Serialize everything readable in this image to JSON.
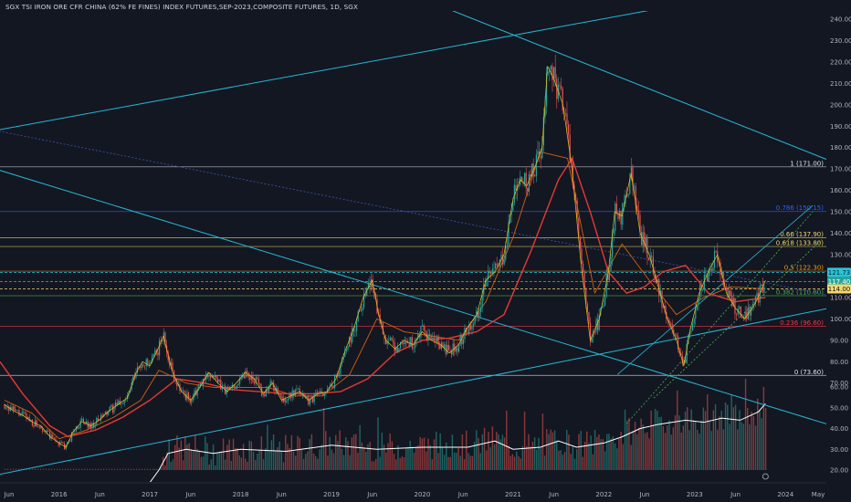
{
  "chart_title": "SGX TSI IRON ORE CFR CHINA (62% FE FINES) INDEX FUTURES,SEP-2023,COMPOSITE FUTURES, 1D, SGX",
  "colors": {
    "background": "#131722",
    "up_candle": "#26a69a",
    "down_candle": "#ef5350",
    "trendline": "#28b6d4",
    "ma_long": "#e53935",
    "ma_mid": "#d65f0c",
    "ma_short": "#e6c21f",
    "volume_line": "#ffffff"
  },
  "y_axis": {
    "ticks": [
      "240.00",
      "230.00",
      "220.00",
      "210.00",
      "200.00",
      "190.00",
      "180.00",
      "170.00",
      "160.00",
      "150.00",
      "140.00",
      "130.00",
      "110.00",
      "100.00",
      "90.00",
      "80.00",
      "70.00",
      "60.00",
      "50.00",
      "40.00",
      "30.00",
      "20.00"
    ]
  },
  "x_axis": {
    "ticks": [
      "Jun",
      "2016",
      "Jun",
      "2017",
      "Jun",
      "2018",
      "Jun",
      "2019",
      "Jun",
      "2020",
      "Jun",
      "2021",
      "Jun",
      "2022",
      "Jun",
      "2023",
      "Jun",
      "2024",
      "May"
    ]
  },
  "fib_levels": [
    {
      "label": "1 (171.00)",
      "value": 171.0,
      "color": "#e0e3eb"
    },
    {
      "label": "0.786 (150.15)",
      "value": 150.15,
      "color": "#2962ff"
    },
    {
      "label": "0.66 (137.90)",
      "value": 137.9,
      "color": "#f5d76e"
    },
    {
      "label": "0.618 (133.80)",
      "value": 133.8,
      "color": "#f5d76e"
    },
    {
      "label": "0.5 (122.30)",
      "value": 122.3,
      "color": "#ff9800"
    },
    {
      "label": "0.382 (110.80)",
      "value": 110.8,
      "color": "#4caf50"
    },
    {
      "label": "0.236 (96.60)",
      "value": 96.6,
      "color": "#f23645"
    },
    {
      "label": "0 (73.60)",
      "value": 73.6,
      "color": "#e0e3eb"
    }
  ],
  "price_tags": [
    {
      "label": "121.73",
      "value": 121.73,
      "color": "#26c6da",
      "text_color": "#131722"
    },
    {
      "label": "117.40",
      "value": 117.4,
      "color": "#26a69a",
      "text_color": "#ffffff"
    },
    {
      "label": "114.00",
      "value": 114.0,
      "color": "#f5d76e",
      "text_color": "#131722"
    }
  ],
  "chart_data": {
    "type": "line",
    "title": "SGX TSI IRON ORE CFR CHINA (62% FE FINES) INDEX FUTURES,SEP-2023,COMPOSITE FUTURES, 1D, SGX",
    "x_unit": "year",
    "xlim": [
      2015.35,
      2024.45
    ],
    "ylim": [
      12,
      245
    ],
    "price_series": {
      "x": [
        2015.4,
        2015.5,
        2015.6,
        2015.7,
        2015.8,
        2015.9,
        2016.0,
        2016.08,
        2016.15,
        2016.25,
        2016.35,
        2016.45,
        2016.55,
        2016.65,
        2016.75,
        2016.85,
        2016.92,
        2017.0,
        2017.08,
        2017.15,
        2017.25,
        2017.35,
        2017.45,
        2017.55,
        2017.65,
        2017.75,
        2017.85,
        2017.95,
        2018.05,
        2018.15,
        2018.25,
        2018.35,
        2018.45,
        2018.55,
        2018.65,
        2018.75,
        2018.85,
        2018.95,
        2019.05,
        2019.15,
        2019.25,
        2019.35,
        2019.45,
        2019.52,
        2019.6,
        2019.7,
        2019.8,
        2019.9,
        2020.0,
        2020.1,
        2020.2,
        2020.3,
        2020.4,
        2020.5,
        2020.6,
        2020.7,
        2020.8,
        2020.9,
        2021.0,
        2021.08,
        2021.15,
        2021.25,
        2021.32,
        2021.38,
        2021.45,
        2021.55,
        2021.65,
        2021.75,
        2021.85,
        2021.95,
        2022.05,
        2022.12,
        2022.2,
        2022.3,
        2022.4,
        2022.5,
        2022.6,
        2022.7,
        2022.8,
        2022.88,
        2022.95,
        2023.05,
        2023.15,
        2023.25,
        2023.35,
        2023.45,
        2023.55,
        2023.65,
        2023.72,
        2023.78
      ],
      "values": [
        60,
        57,
        55,
        52,
        50,
        45,
        42,
        40,
        47,
        52,
        50,
        53,
        57,
        60,
        63,
        75,
        80,
        78,
        85,
        92,
        75,
        66,
        62,
        68,
        75,
        70,
        66,
        70,
        75,
        72,
        65,
        70,
        62,
        64,
        66,
        62,
        65,
        66,
        72,
        85,
        96,
        110,
        118,
        102,
        90,
        86,
        90,
        88,
        94,
        90,
        88,
        84,
        88,
        96,
        102,
        118,
        122,
        130,
        156,
        165,
        162,
        172,
        180,
        218,
        212,
        200,
        170,
        125,
        90,
        100,
        122,
        150,
        148,
        168,
        140,
        130,
        115,
        100,
        90,
        78,
        95,
        112,
        122,
        130,
        112,
        105,
        100,
        106,
        112,
        118
      ]
    },
    "ma_long": {
      "x": [
        2015.35,
        2015.6,
        2015.9,
        2016.1,
        2016.4,
        2016.7,
        2017.0,
        2017.3,
        2017.6,
        2017.9,
        2018.2,
        2018.5,
        2018.8,
        2019.1,
        2019.4,
        2019.7,
        2020.0,
        2020.3,
        2020.6,
        2020.9,
        2021.2,
        2021.5,
        2021.65,
        2021.85,
        2022.05,
        2022.25,
        2022.45,
        2022.65,
        2022.9,
        2023.15,
        2023.45,
        2023.78
      ],
      "values": [
        80,
        65,
        50,
        45,
        48,
        54,
        62,
        72,
        70,
        67,
        66,
        65,
        65,
        66,
        72,
        84,
        90,
        91,
        94,
        102,
        132,
        165,
        175,
        150,
        122,
        112,
        115,
        122,
        125,
        112,
        108,
        110
      ]
    },
    "ma_mid": {
      "x": [
        2015.4,
        2015.7,
        2016.0,
        2016.3,
        2016.6,
        2016.9,
        2017.1,
        2017.4,
        2017.7,
        2018.0,
        2018.3,
        2018.6,
        2018.9,
        2019.2,
        2019.5,
        2019.8,
        2020.1,
        2020.4,
        2020.7,
        2021.0,
        2021.3,
        2021.6,
        2021.9,
        2022.2,
        2022.5,
        2022.8,
        2023.1,
        2023.4,
        2023.78
      ],
      "values": [
        62,
        56,
        44,
        48,
        54,
        62,
        76,
        70,
        68,
        68,
        68,
        64,
        64,
        74,
        100,
        94,
        92,
        90,
        108,
        138,
        178,
        175,
        112,
        135,
        118,
        102,
        110,
        115,
        114
      ]
    },
    "volume_trend": {
      "x": [
        2015.4,
        2016.5,
        2017.0,
        2017.1,
        2017.2,
        2017.4,
        2017.7,
        2018.0,
        2018.5,
        2019.0,
        2019.5,
        2020.0,
        2020.5,
        2020.8,
        2021.0,
        2021.3,
        2021.5,
        2021.7,
        2022.0,
        2022.2,
        2022.4,
        2022.6,
        2022.9,
        2023.1,
        2023.3,
        2023.5,
        2023.7,
        2023.78
      ],
      "values": [
        13,
        13,
        14,
        20,
        28,
        30,
        28,
        30,
        29,
        32,
        30,
        31,
        31,
        34,
        30,
        31,
        34,
        31,
        33,
        36,
        40,
        42,
        44,
        43,
        45,
        44,
        48,
        52
      ]
    },
    "volume_axis_ticks": [
      20,
      30,
      40,
      50,
      60
    ],
    "trendlines_note": "channel and trend lines drawn from published chart",
    "grid": false,
    "legend": "none"
  }
}
